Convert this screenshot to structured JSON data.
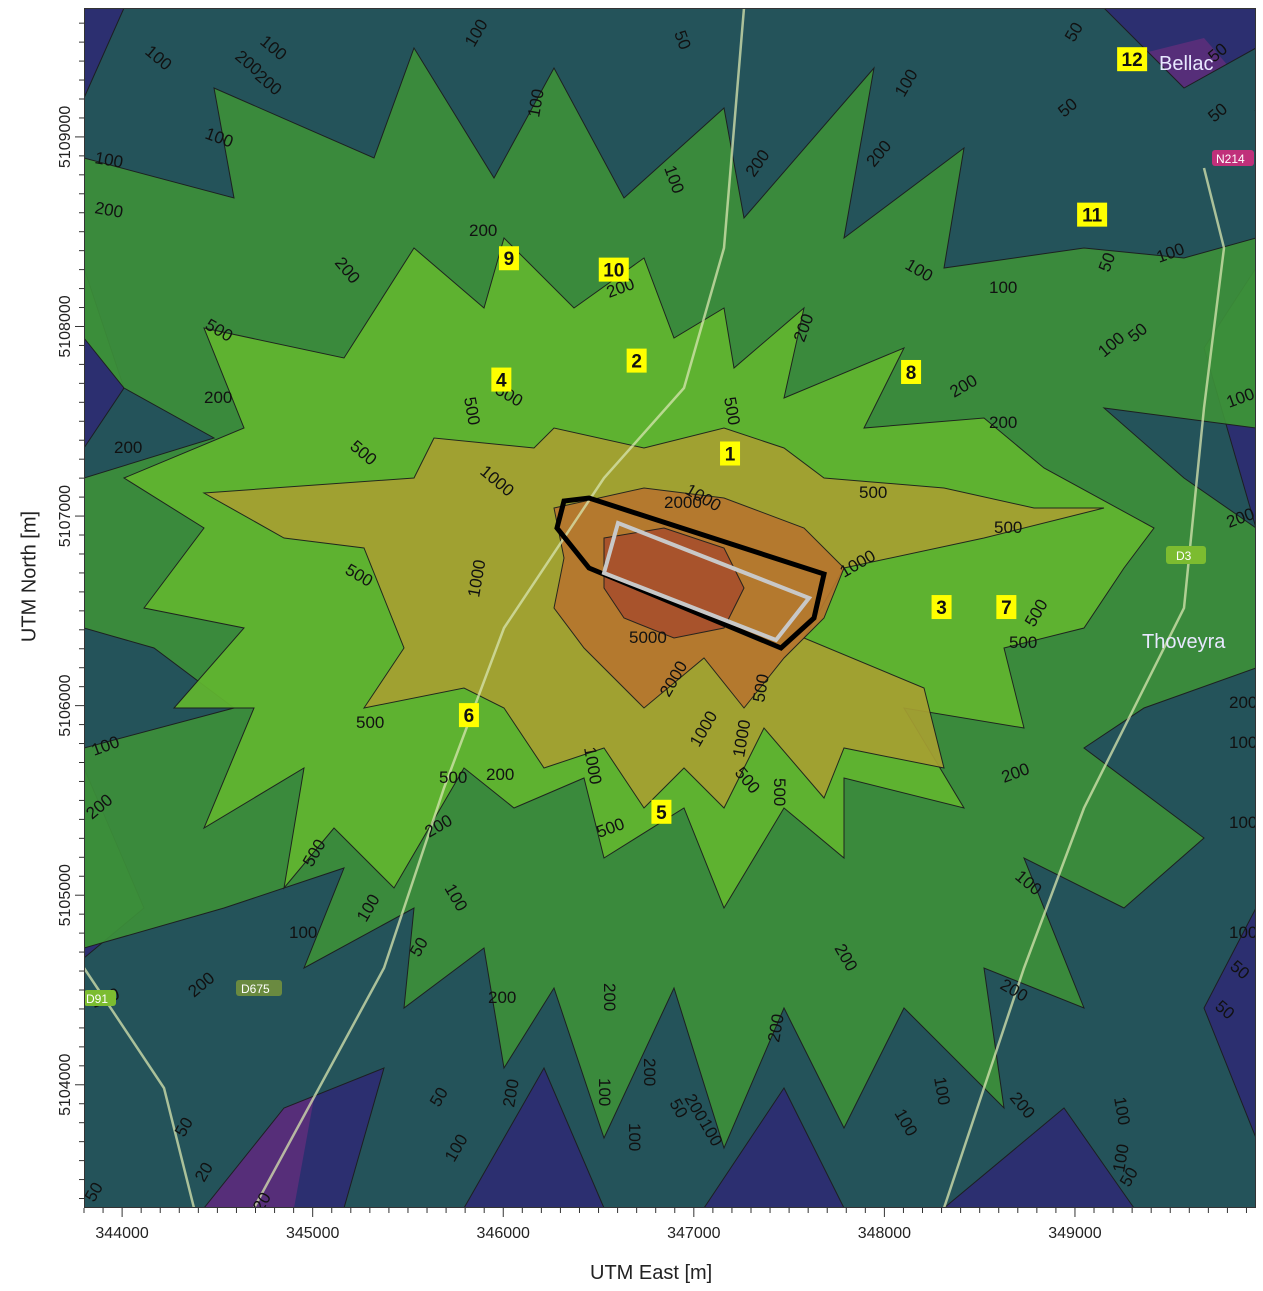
{
  "axes": {
    "xlabel": "UTM East [m]",
    "ylabel": "UTM North [m]",
    "x_ticks": [
      "344000",
      "345000",
      "346000",
      "347000",
      "348000",
      "349000"
    ],
    "y_ticks": [
      "5104000",
      "5105000",
      "5106000",
      "5107000",
      "5108000",
      "5109000"
    ],
    "x_range": [
      343800,
      349950
    ],
    "y_range": [
      5103350,
      5109680
    ]
  },
  "colors": {
    "level_20": "#5a2f7a",
    "level_50": "#2c2f70",
    "level_100": "#24545a",
    "level_200": "#3c8f3a",
    "level_500": "#62b630",
    "level_1000": "#a6a032",
    "level_2000": "#b6762e",
    "level_5000": "#a8502c",
    "peak": "#d83030",
    "site_outline": "#000000",
    "inner_outline": "#c8c8c8",
    "receptor_fill": "#ffff00"
  },
  "contour_labels": [
    "20",
    "50",
    "100",
    "200",
    "500",
    "1000",
    "2000",
    "5000"
  ],
  "receptors": [
    {
      "id": "1",
      "x": 347190,
      "y": 5107330
    },
    {
      "id": "2",
      "x": 346700,
      "y": 5107820
    },
    {
      "id": "3",
      "x": 348300,
      "y": 5106520
    },
    {
      "id": "4",
      "x": 345990,
      "y": 5107720
    },
    {
      "id": "5",
      "x": 346830,
      "y": 5105440
    },
    {
      "id": "6",
      "x": 345820,
      "y": 5105950
    },
    {
      "id": "7",
      "x": 348640,
      "y": 5106520
    },
    {
      "id": "8",
      "x": 348140,
      "y": 5107760
    },
    {
      "id": "9",
      "x": 346030,
      "y": 5108360
    },
    {
      "id": "10",
      "x": 346580,
      "y": 5108300
    },
    {
      "id": "11",
      "x": 349090,
      "y": 5108590
    },
    {
      "id": "12",
      "x": 349300,
      "y": 5109410
    }
  ],
  "places": {
    "town_ne": "Bellac",
    "town_e": "Thoveyra"
  },
  "roads": {
    "r1": "N214",
    "r2": "D3",
    "r3": "D675",
    "r4": "D91"
  }
}
